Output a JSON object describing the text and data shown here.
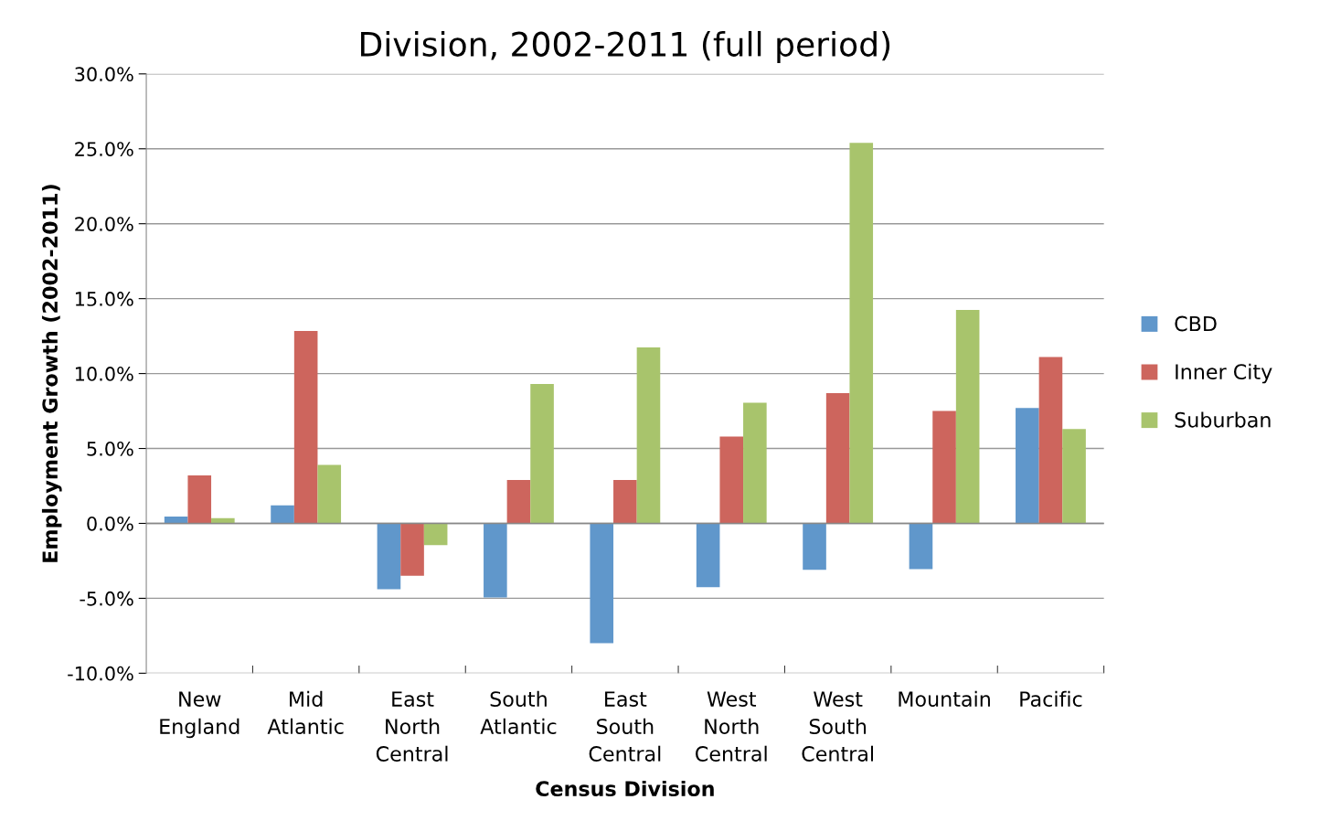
{
  "chart_data": {
    "type": "bar",
    "title": "Division, 2002-2011 (full period)",
    "xlabel": "Census Division",
    "ylabel": "Employment Growth (2002-2011)",
    "categories": [
      "New\nEngland",
      "Mid\nAtlantic",
      "East\nNorth\nCentral",
      "South\nAtlantic",
      "East\nSouth\nCentral",
      "West\nNorth\nCentral",
      "West\nSouth\nCentral",
      "Mountain",
      "Pacific"
    ],
    "series": [
      {
        "name": "CBD",
        "color": "#6097cb",
        "values": [
          0.45,
          1.2,
          -4.4,
          -4.95,
          -8.0,
          -4.25,
          -3.1,
          -3.05,
          7.7
        ]
      },
      {
        "name": "Inner City",
        "color": "#cd655d",
        "values": [
          3.2,
          12.85,
          -3.5,
          2.9,
          2.9,
          5.8,
          8.7,
          7.5,
          11.1
        ]
      },
      {
        "name": "Suburban",
        "color": "#a8c46c",
        "values": [
          0.35,
          3.9,
          -1.45,
          9.3,
          11.75,
          8.05,
          25.4,
          14.25,
          6.3
        ]
      }
    ],
    "ylim": [
      -10,
      30
    ],
    "yticks": [
      {
        "value": -10,
        "label": "-10.0%"
      },
      {
        "value": -5,
        "label": "-5.0%"
      },
      {
        "value": 0,
        "label": "0.0%"
      },
      {
        "value": 5,
        "label": "5.0%"
      },
      {
        "value": 10,
        "label": "10.0%"
      },
      {
        "value": 15,
        "label": "15.0%"
      },
      {
        "value": 20,
        "label": "20.0%"
      },
      {
        "value": 25,
        "label": "25.0%"
      },
      {
        "value": 30,
        "label": "30.0%"
      }
    ],
    "grid": "y",
    "legend": "right"
  }
}
